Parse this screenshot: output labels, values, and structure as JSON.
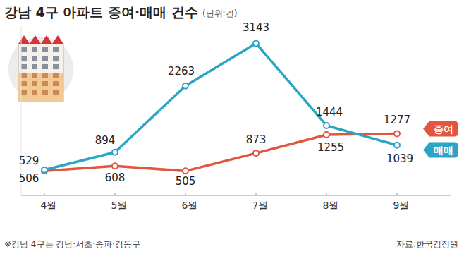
{
  "chart_data": {
    "type": "line",
    "title": "강남 4구 아파트 증여·매매 건수",
    "subtitle": "(단위:건)",
    "categories": [
      "4월",
      "5월",
      "6월",
      "7월",
      "8월",
      "9월"
    ],
    "series": [
      {
        "name": "매매",
        "color": "#2aa5c5",
        "marker": "circle",
        "values": [
          529,
          894,
          2263,
          3143,
          1444,
          1039
        ]
      },
      {
        "name": "증여",
        "color": "#e2563f",
        "marker": "circle",
        "values": [
          506,
          608,
          505,
          873,
          1255,
          1277
        ]
      }
    ],
    "ylim": [
      0,
      3500
    ],
    "tick_labels": "x",
    "grid": false,
    "data_labels": true,
    "legend": "right",
    "note": "※강남 4구는 강남·서초·송파·강동구",
    "source": "자료:한국감정원"
  }
}
